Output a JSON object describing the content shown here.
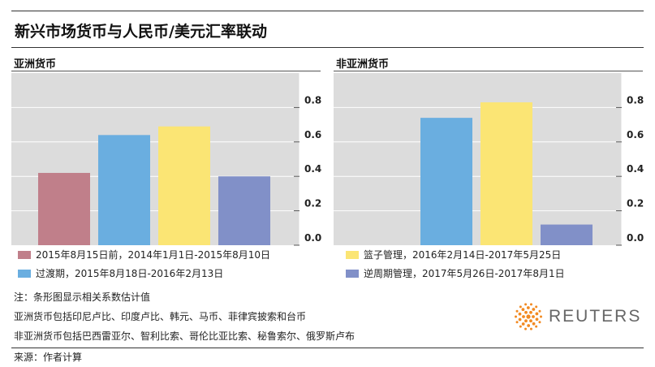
{
  "title": "新兴市场货币与人民币/美元汇率联动",
  "chart_data": [
    {
      "type": "bar",
      "title": "亚洲货币",
      "categories": [
        "2015年8月15日前，2014年1月1日-2015年8月10日",
        "过渡期，2015年8月18日-2016年2月13日",
        "篮子管理，2016年2月14日-2017年5月25日",
        "逆周期管理，2017年5月26日-2017年8月1日"
      ],
      "values": [
        0.42,
        0.64,
        0.69,
        0.4
      ],
      "ylim": [
        0,
        1.0
      ],
      "yticks": [
        "0.0",
        "0.2",
        "0.4",
        "0.6",
        "0.8"
      ],
      "colors": [
        "#c07f8a",
        "#6aaee0",
        "#fbe574",
        "#8190c8"
      ],
      "grid": true
    },
    {
      "type": "bar",
      "title": "非亚洲货币",
      "categories": [
        "2015年8月15日前，2014年1月1日-2015年8月10日",
        "过渡期，2015年8月18日-2016年2月13日",
        "篮子管理，2016年2月14日-2017年5月25日",
        "逆周期管理，2017年5月26日-2017年8月1日"
      ],
      "values": [
        null,
        0.74,
        0.83,
        0.12
      ],
      "ylim": [
        0,
        1.0
      ],
      "yticks": [
        "0.0",
        "0.2",
        "0.4",
        "0.6",
        "0.8"
      ],
      "colors": [
        "#c07f8a",
        "#6aaee0",
        "#fbe574",
        "#8190c8"
      ],
      "grid": true
    }
  ],
  "legend": [
    {
      "label": "2015年8月15日前，2014年1月1日-2015年8月10日",
      "color": "#c07f8a"
    },
    {
      "label": "过渡期，2015年8月18日-2016年2月13日",
      "color": "#6aaee0"
    },
    {
      "label": "篮子管理，2016年2月14日-2017年5月25日",
      "color": "#fbe574"
    },
    {
      "label": "逆周期管理，2017年5月26日-2017年8月1日",
      "color": "#8190c8"
    }
  ],
  "notes": [
    "注：条形图显示相关系数估计值",
    "亚洲货币包括印尼卢比、印度卢比、韩元、马币、菲律宾披索和台币",
    "非亚洲货币包括巴西雷亚尔、智利比索、哥伦比亚比索、秘鲁索尔、俄罗斯卢布"
  ],
  "source": "来源：作者计算",
  "logo": {
    "text": "REUTERS",
    "icon": "reuters-dot-logo-icon",
    "color": "#f28a22"
  }
}
